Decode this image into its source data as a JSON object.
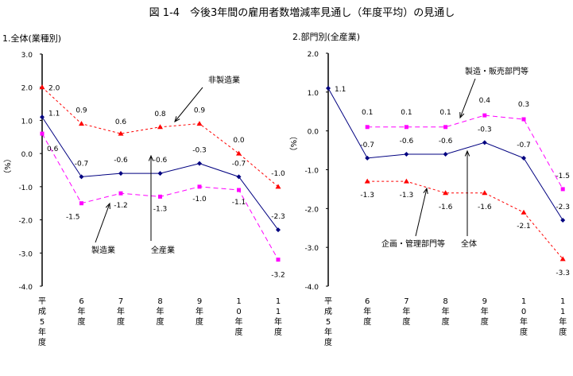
{
  "title": "図 1-4　今後3年間の雇用者数増減率見通し（年度平均）の見通し",
  "chart_data": [
    {
      "type": "line",
      "title": "1.全体(業種別)",
      "ylabel": "（%）",
      "ylim": [
        -4.0,
        3.0
      ],
      "yticks": [
        "3.0",
        "2.0",
        "1.0",
        "0.0",
        "-1.0",
        "-2.0",
        "-3.0",
        "-4.0"
      ],
      "categories": [
        "平成5年度",
        "6年度",
        "7年度",
        "8年度",
        "9年度",
        "10年度",
        "11年度"
      ],
      "series": [
        {
          "name": "製造業",
          "color": "#ff00ff",
          "marker": "square",
          "values": [
            0.6,
            -1.5,
            -1.2,
            -1.3,
            -1.0,
            -1.1,
            -3.2
          ]
        },
        {
          "name": "全産業",
          "color": "#000080",
          "marker": "diamond",
          "values": [
            1.1,
            -0.7,
            -0.6,
            -0.6,
            -0.3,
            -0.7,
            -2.3
          ]
        },
        {
          "name": "非製造業",
          "color": "#ff0000",
          "marker": "triangle",
          "values": [
            2.0,
            0.9,
            0.6,
            0.8,
            0.9,
            0.0,
            -1.0
          ]
        }
      ],
      "labels": [
        [
          "0.6",
          "-1.5",
          "-1.2",
          "-1.3",
          "-1.0",
          "-1.1",
          "-3.2"
        ],
        [
          "1.1",
          "-0.7",
          "-0.6",
          "-0.6",
          "-0.3",
          "-0.7",
          "-2.3"
        ],
        [
          "2.0",
          "0.9",
          "0.6",
          "0.8",
          "0.9",
          "0.0",
          "-1.0"
        ]
      ]
    },
    {
      "type": "line",
      "title": "2.部門別(全産業)",
      "ylabel": "（%）",
      "ylim": [
        -4.0,
        2.0
      ],
      "yticks": [
        "2.0",
        "1.0",
        "0.0",
        "-1.0",
        "-2.0",
        "-3.0",
        "-4.0"
      ],
      "categories": [
        "平成5年度",
        "6年度",
        "7年度",
        "8年度",
        "9年度",
        "10年度",
        "11年度"
      ],
      "series": [
        {
          "name": "製造・販売部門等",
          "color": "#ff00ff",
          "marker": "square",
          "values": [
            null,
            0.1,
            0.1,
            0.1,
            0.4,
            0.3,
            -1.5
          ]
        },
        {
          "name": "全体",
          "color": "#000080",
          "marker": "diamond",
          "values": [
            1.1,
            -0.7,
            -0.6,
            -0.6,
            -0.3,
            -0.7,
            -2.3
          ]
        },
        {
          "name": "企画・管理部門等",
          "color": "#ff0000",
          "marker": "triangle",
          "values": [
            null,
            -1.3,
            -1.3,
            -1.6,
            -1.6,
            -2.1,
            -3.3
          ]
        }
      ],
      "labels": [
        [
          "",
          "0.1",
          "0.1",
          "0.1",
          "0.4",
          "0.3",
          "-1.5"
        ],
        [
          "1.1",
          "-0.7",
          "-0.6",
          "-0.6",
          "-0.3",
          "-0.7",
          "-2.3"
        ],
        [
          "",
          "-1.3",
          "-1.3",
          "-1.6",
          "-1.6",
          "-2.1",
          "-3.3"
        ]
      ]
    }
  ]
}
